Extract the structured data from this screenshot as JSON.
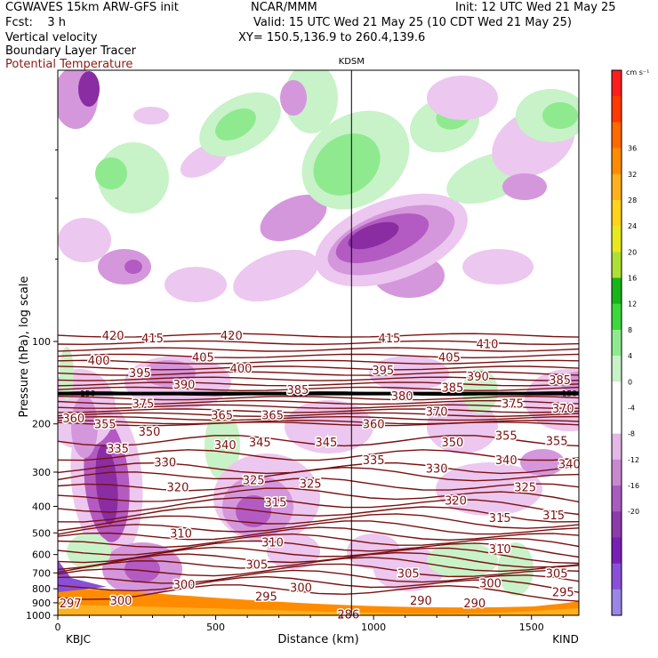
{
  "header": {
    "model": "CGWAVES 15km ARW-GFS init",
    "forecast": "Fcst:    3 h",
    "field1": "Vertical velocity",
    "field2": "Boundary Layer Tracer",
    "field3": "Potential Temperature",
    "center": "NCAR/MMM",
    "init": "Init: 12 UTC Wed 21 May 25",
    "valid": "Valid: 15 UTC Wed 21 May 25 (10 CDT Wed 21 May 25)",
    "xy": "XY= 150.5,136.9 to 260.4,139.6"
  },
  "chart_data": {
    "type": "heatmap",
    "xlabel": "Distance (km)",
    "ylabel": "Pressure (hPa), log scale",
    "xlim": [
      0,
      1650
    ],
    "ylim": [
      1000,
      10
    ],
    "y_scale": "log",
    "x_ticks": [
      "0",
      "500",
      "1000",
      "1500"
    ],
    "y_ticks": [
      100,
      200,
      300,
      400,
      500,
      600,
      700,
      800,
      900,
      1000
    ],
    "start_label": "KBJC",
    "end_label": "KIND",
    "station_label": "KDSM",
    "station_km": 930,
    "colorbar": {
      "units": "cm s⁻¹",
      "levels": [
        -20,
        -16,
        -12,
        -8,
        -4,
        0,
        4,
        8,
        12,
        16,
        20,
        24,
        28,
        32,
        36
      ],
      "colors": [
        "#9a86e6",
        "#8a4fd8",
        "#7a1fb5",
        "#8d3aaa",
        "#a85cc0",
        "#c888cf",
        "#e3b7e6",
        "#ffffff",
        "#ffffff",
        "#c8f2c8",
        "#8fea8f",
        "#3cd83c",
        "#18b418",
        "#aee033",
        "#e8e81e",
        "#ffd21e",
        "#ffb01e",
        "#ff8c00",
        "#ff6a00",
        "#ff3a00",
        "#ff1e1e"
      ]
    },
    "theta_labels": [
      {
        "label": "420",
        "x": 175,
        "p": 95
      },
      {
        "label": "415",
        "x": 300,
        "p": 97
      },
      {
        "label": "420",
        "x": 550,
        "p": 95
      },
      {
        "label": "415",
        "x": 1050,
        "p": 97
      },
      {
        "label": "410",
        "x": 1360,
        "p": 102
      },
      {
        "label": "400",
        "x": 130,
        "p": 117
      },
      {
        "label": "405",
        "x": 460,
        "p": 114
      },
      {
        "label": "400",
        "x": 580,
        "p": 125
      },
      {
        "label": "395",
        "x": 1030,
        "p": 127
      },
      {
        "label": "405",
        "x": 1240,
        "p": 114
      },
      {
        "label": "395",
        "x": 260,
        "p": 130
      },
      {
        "label": "390",
        "x": 400,
        "p": 143
      },
      {
        "label": "385",
        "x": 760,
        "p": 150
      },
      {
        "label": "390",
        "x": 1330,
        "p": 134
      },
      {
        "label": "385",
        "x": 1590,
        "p": 138
      },
      {
        "label": "385",
        "x": 1250,
        "p": 147
      },
      {
        "label": "380",
        "x": 1090,
        "p": 158
      },
      {
        "label": "375",
        "x": 270,
        "p": 168
      },
      {
        "label": "375",
        "x": 1440,
        "p": 168
      },
      {
        "label": "370",
        "x": 1200,
        "p": 180
      },
      {
        "label": "370",
        "x": 1600,
        "p": 175
      },
      {
        "label": "360",
        "x": 50,
        "p": 190
      },
      {
        "label": "355",
        "x": 150,
        "p": 200
      },
      {
        "label": "365",
        "x": 520,
        "p": 185
      },
      {
        "label": "365",
        "x": 680,
        "p": 185
      },
      {
        "label": "360",
        "x": 1000,
        "p": 200
      },
      {
        "label": "350",
        "x": 290,
        "p": 213
      },
      {
        "label": "340",
        "x": 530,
        "p": 238
      },
      {
        "label": "345",
        "x": 640,
        "p": 233
      },
      {
        "label": "345",
        "x": 850,
        "p": 233
      },
      {
        "label": "350",
        "x": 1250,
        "p": 233
      },
      {
        "label": "355",
        "x": 1420,
        "p": 220
      },
      {
        "label": "355",
        "x": 1580,
        "p": 230
      },
      {
        "label": "335",
        "x": 190,
        "p": 245
      },
      {
        "label": "330",
        "x": 340,
        "p": 275
      },
      {
        "label": "335",
        "x": 1000,
        "p": 270
      },
      {
        "label": "340",
        "x": 1420,
        "p": 270
      },
      {
        "label": "340",
        "x": 1620,
        "p": 280
      },
      {
        "label": "330",
        "x": 1200,
        "p": 290
      },
      {
        "label": "325",
        "x": 620,
        "p": 320
      },
      {
        "label": "325",
        "x": 800,
        "p": 330
      },
      {
        "label": "325",
        "x": 1480,
        "p": 340
      },
      {
        "label": "320",
        "x": 380,
        "p": 340
      },
      {
        "label": "320",
        "x": 1260,
        "p": 380
      },
      {
        "label": "315",
        "x": 690,
        "p": 385
      },
      {
        "label": "315",
        "x": 1400,
        "p": 440
      },
      {
        "label": "315",
        "x": 1570,
        "p": 430
      },
      {
        "label": "310",
        "x": 390,
        "p": 500
      },
      {
        "label": "310",
        "x": 680,
        "p": 540
      },
      {
        "label": "310",
        "x": 1400,
        "p": 570
      },
      {
        "label": "305",
        "x": 630,
        "p": 650
      },
      {
        "label": "305",
        "x": 1110,
        "p": 700
      },
      {
        "label": "305",
        "x": 1580,
        "p": 700
      },
      {
        "label": "300",
        "x": 400,
        "p": 770
      },
      {
        "label": "300",
        "x": 770,
        "p": 790
      },
      {
        "label": "300",
        "x": 1370,
        "p": 760
      },
      {
        "label": "295",
        "x": 660,
        "p": 850
      },
      {
        "label": "295",
        "x": 1600,
        "p": 820
      },
      {
        "label": "297",
        "x": 40,
        "p": 900
      },
      {
        "label": "300",
        "x": 200,
        "p": 880
      },
      {
        "label": "290",
        "x": 1150,
        "p": 880
      },
      {
        "label": "290",
        "x": 1320,
        "p": 900
      },
      {
        "label": "286",
        "x": 920,
        "p": 990
      }
    ],
    "tracer_labels": [
      "150",
      "150",
      "150"
    ]
  }
}
